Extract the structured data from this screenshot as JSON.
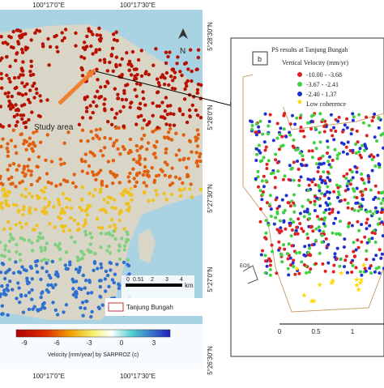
{
  "left_map": {
    "top_lon": [
      "100°17'0\"E",
      "100°17'30\"E"
    ],
    "bottom_lon": [
      "100°17'0\"E",
      "100°17'30\"E"
    ],
    "right_lat": [
      "5°28'30\"N",
      "5°28'0\"N",
      "5°27'30\"N",
      "5°27'0\"N",
      "5°26'30\"N"
    ],
    "north": "N",
    "study_area": "Study area",
    "scale_ticks": [
      "0",
      "0.51",
      "2",
      "3",
      "4"
    ],
    "scale_unit": "km",
    "inset_legend": "Tanjung Bungah",
    "colorbar_ticks": [
      "-9",
      "-6",
      "-3",
      "0",
      "3"
    ],
    "colorbar_title": "Velocity [mm/year]  by  SARPROZ (c)"
  },
  "right_map": {
    "panel": "b",
    "title": "PS results at Tanjung Bungah",
    "legend_title": "Vertical Velocity (mm/yr)",
    "legend": [
      "-10.00 - -3.68",
      "-3.67 - -2.41",
      "-2.40 - 1.37",
      "Low coherence"
    ],
    "scale_ticks": [
      "0",
      "0.5",
      "1"
    ],
    "label": "EOS"
  }
}
